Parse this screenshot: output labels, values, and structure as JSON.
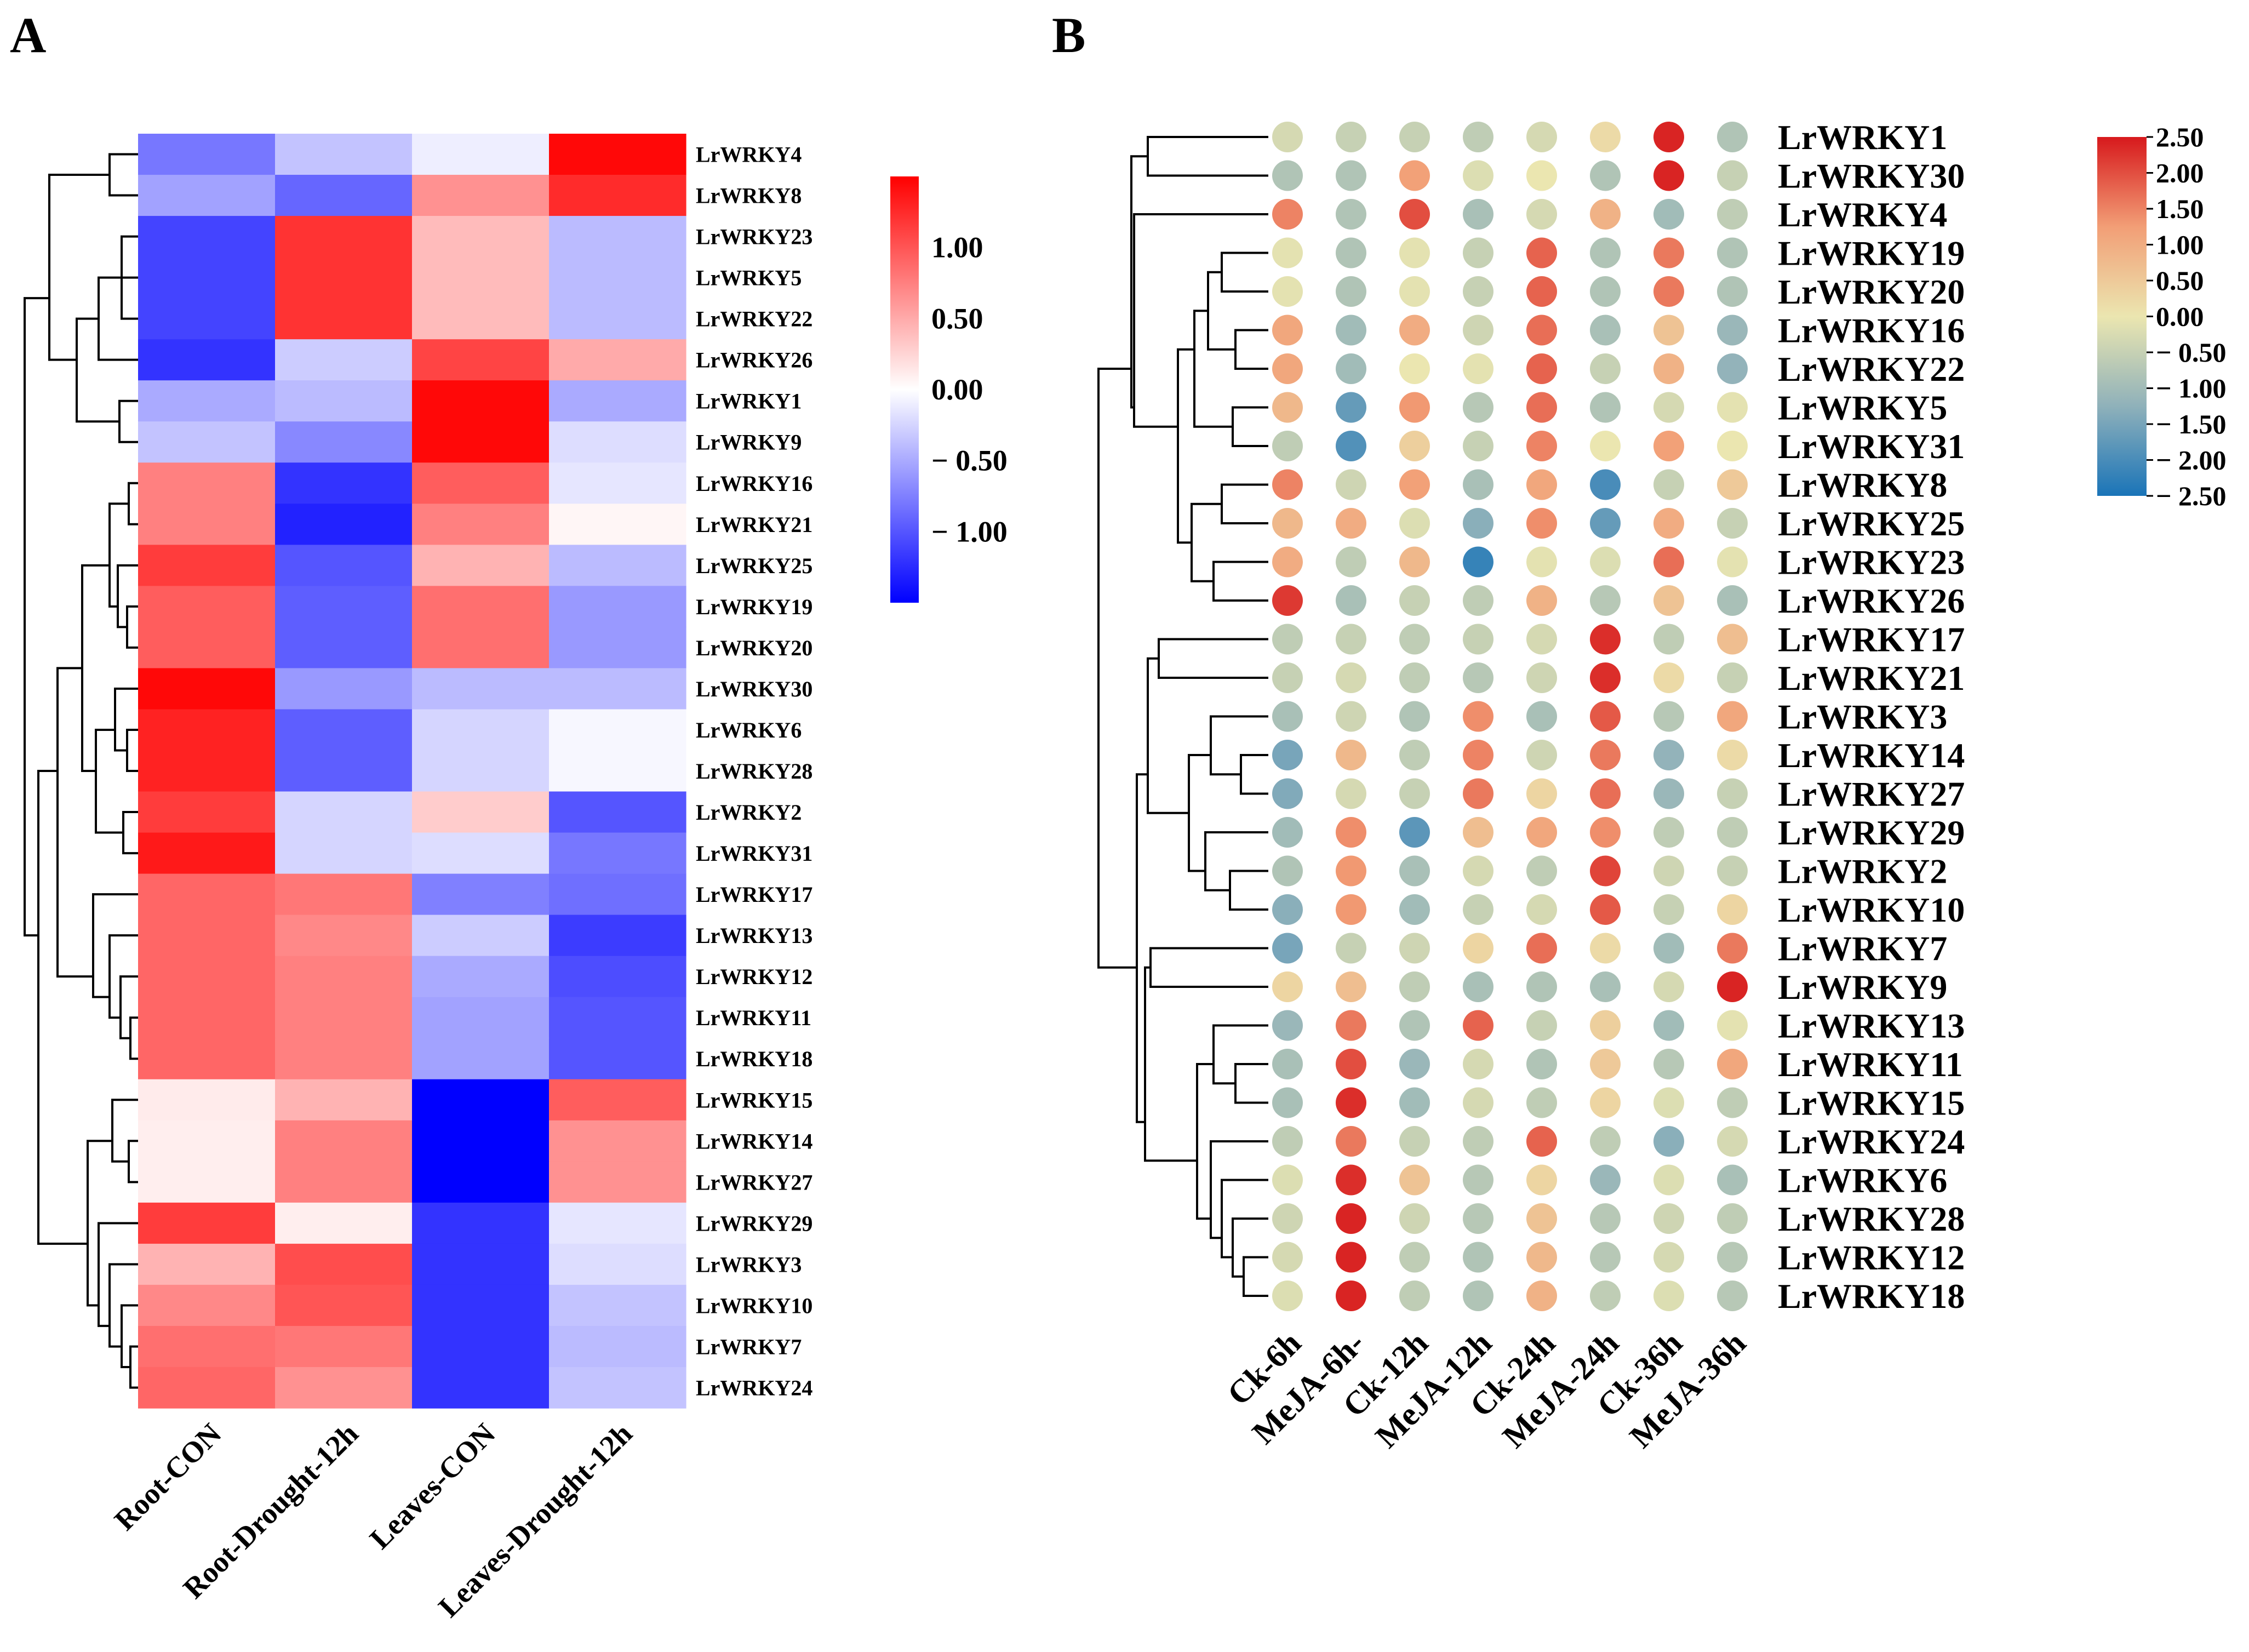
{
  "panels": {
    "a_label": "A",
    "b_label": "B"
  },
  "colors": {
    "heat_low": "#0000ff",
    "heat_mid": "#ffffff",
    "heat_high": "#ff0000",
    "tree": "#000000"
  },
  "chart_data": [
    {
      "type": "heatmap",
      "panel": "A",
      "columns": [
        "Root-CON",
        "Root-Drought-12h",
        "Leaves-CON",
        "Leaves-Drought-12h"
      ],
      "rows": [
        "LrWRKY4",
        "LrWRKY8",
        "LrWRKY23",
        "LrWRKY5",
        "LrWRKY22",
        "LrWRKY26",
        "LrWRKY1",
        "LrWRKY9",
        "LrWRKY16",
        "LrWRKY21",
        "LrWRKY25",
        "LrWRKY19",
        "LrWRKY20",
        "LrWRKY30",
        "LrWRKY6",
        "LrWRKY28",
        "LrWRKY2",
        "LrWRKY31",
        "LrWRKY17",
        "LrWRKY13",
        "LrWRKY12",
        "LrWRKY11",
        "LrWRKY18",
        "LrWRKY15",
        "LrWRKY14",
        "LrWRKY27",
        "LrWRKY29",
        "LrWRKY3",
        "LrWRKY10",
        "LrWRKY7",
        "LrWRKY24"
      ],
      "values": [
        [
          -0.8,
          -0.35,
          -0.1,
          1.45
        ],
        [
          -0.55,
          -0.9,
          0.65,
          1.25
        ],
        [
          -1.1,
          1.2,
          0.4,
          -0.4
        ],
        [
          -1.1,
          1.2,
          0.4,
          -0.4
        ],
        [
          -1.1,
          1.2,
          0.4,
          -0.4
        ],
        [
          -1.2,
          -0.3,
          1.1,
          0.5
        ],
        [
          -0.5,
          -0.4,
          1.45,
          -0.5
        ],
        [
          -0.35,
          -0.7,
          1.45,
          -0.2
        ],
        [
          0.75,
          -1.2,
          0.95,
          -0.15
        ],
        [
          0.75,
          -1.3,
          0.75,
          0.05
        ],
        [
          1.15,
          -1.0,
          0.45,
          -0.4
        ],
        [
          0.95,
          -0.95,
          0.85,
          -0.6
        ],
        [
          0.95,
          -0.95,
          0.85,
          -0.6
        ],
        [
          1.45,
          -0.6,
          -0.4,
          -0.4
        ],
        [
          1.3,
          -0.95,
          -0.25,
          -0.05
        ],
        [
          1.3,
          -0.95,
          -0.25,
          -0.05
        ],
        [
          1.15,
          -0.25,
          0.3,
          -1.0
        ],
        [
          1.35,
          -0.25,
          -0.2,
          -0.8
        ],
        [
          0.9,
          0.8,
          -0.75,
          -0.85
        ],
        [
          0.9,
          0.7,
          -0.3,
          -1.15
        ],
        [
          0.9,
          0.75,
          -0.5,
          -1.05
        ],
        [
          0.9,
          0.75,
          -0.55,
          -1.0
        ],
        [
          0.9,
          0.75,
          -0.55,
          -1.0
        ],
        [
          0.12,
          0.45,
          -1.5,
          0.95
        ],
        [
          0.1,
          0.75,
          -1.5,
          0.65
        ],
        [
          0.1,
          0.75,
          -1.5,
          0.65
        ],
        [
          1.15,
          0.1,
          -1.2,
          -0.15
        ],
        [
          0.45,
          1.05,
          -1.2,
          -0.2
        ],
        [
          0.7,
          1.0,
          -1.2,
          -0.35
        ],
        [
          0.85,
          0.8,
          -1.2,
          -0.4
        ],
        [
          0.9,
          0.65,
          -1.2,
          -0.35
        ]
      ],
      "colorbar": {
        "ticks": [
          1.0,
          0.5,
          0.0,
          -0.5,
          -1.0
        ],
        "tick_labels": [
          "1.00",
          "0.50",
          "0.00",
          "− 0.50",
          "− 1.00"
        ],
        "min": -1.5,
        "max": 1.5
      },
      "dendrogram": "hierarchical clustering of rows (left side)"
    },
    {
      "type": "heatmap",
      "panel": "B",
      "style": "dot-plot",
      "columns": [
        "Ck-6h",
        "MeJA-6h-",
        "Ck-12h",
        "MeJA-12h",
        "Ck-24h",
        "MeJA-24h",
        "Ck-36h",
        "MeJA-36h"
      ],
      "rows": [
        "LrWRKY1",
        "LrWRKY30",
        "LrWRKY4",
        "LrWRKY19",
        "LrWRKY20",
        "LrWRKY16",
        "LrWRKY22",
        "LrWRKY5",
        "LrWRKY31",
        "LrWRKY8",
        "LrWRKY25",
        "LrWRKY23",
        "LrWRKY26",
        "LrWRKY17",
        "LrWRKY21",
        "LrWRKY3",
        "LrWRKY14",
        "LrWRKY27",
        "LrWRKY29",
        "LrWRKY2",
        "LrWRKY10",
        "LrWRKY7",
        "LrWRKY9",
        "LrWRKY13",
        "LrWRKY11",
        "LrWRKY15",
        "LrWRKY24",
        "LrWRKY6",
        "LrWRKY28",
        "LrWRKY12",
        "LrWRKY18"
      ],
      "values": [
        [
          -0.3,
          -0.5,
          -0.5,
          -0.6,
          -0.3,
          0.2,
          2.4,
          -0.8
        ],
        [
          -0.8,
          -0.8,
          1.2,
          -0.2,
          0.0,
          -0.8,
          2.4,
          -0.5
        ],
        [
          1.5,
          -0.8,
          2.0,
          -0.9,
          -0.3,
          0.9,
          -1.0,
          -0.6
        ],
        [
          -0.1,
          -0.8,
          -0.1,
          -0.5,
          1.8,
          -0.8,
          1.6,
          -0.8
        ],
        [
          -0.1,
          -0.8,
          -0.1,
          -0.5,
          1.8,
          -0.8,
          1.6,
          -0.8
        ],
        [
          1.1,
          -1.0,
          1.0,
          -0.4,
          1.7,
          -0.9,
          0.6,
          -1.1
        ],
        [
          1.1,
          -1.0,
          0.0,
          -0.1,
          1.8,
          -0.5,
          0.9,
          -1.2
        ],
        [
          0.8,
          -1.7,
          1.3,
          -0.7,
          1.7,
          -0.8,
          -0.3,
          -0.1
        ],
        [
          -0.6,
          -1.9,
          0.4,
          -0.5,
          1.5,
          0.0,
          1.2,
          0.0
        ],
        [
          1.5,
          -0.4,
          1.2,
          -0.9,
          1.1,
          -2.0,
          -0.5,
          0.5
        ],
        [
          0.8,
          1.0,
          -0.2,
          -1.3,
          1.4,
          -1.7,
          1.0,
          -0.5
        ],
        [
          1.0,
          -0.6,
          0.8,
          -2.2,
          -0.1,
          -0.2,
          1.7,
          -0.1
        ],
        [
          2.2,
          -0.9,
          -0.5,
          -0.6,
          0.9,
          -0.7,
          0.6,
          -0.9
        ],
        [
          -0.6,
          -0.5,
          -0.6,
          -0.5,
          -0.3,
          2.3,
          -0.6,
          0.7
        ],
        [
          -0.5,
          -0.3,
          -0.6,
          -0.7,
          -0.4,
          2.3,
          0.2,
          -0.5
        ],
        [
          -0.9,
          -0.4,
          -0.8,
          1.4,
          -0.9,
          1.9,
          -0.7,
          1.1
        ],
        [
          -1.5,
          0.8,
          -0.6,
          1.5,
          -0.4,
          1.6,
          -1.2,
          0.2
        ],
        [
          -1.4,
          -0.3,
          -0.5,
          1.6,
          0.3,
          1.7,
          -1.1,
          -0.5
        ],
        [
          -1.0,
          1.4,
          -1.8,
          0.7,
          1.1,
          1.4,
          -0.6,
          -0.6
        ],
        [
          -0.8,
          1.3,
          -0.9,
          -0.3,
          -0.6,
          2.1,
          -0.4,
          -0.5
        ],
        [
          -1.3,
          1.3,
          -1.0,
          -0.5,
          -0.3,
          1.9,
          -0.5,
          0.3
        ],
        [
          -1.5,
          -0.5,
          -0.4,
          0.3,
          1.7,
          0.2,
          -1.0,
          1.6
        ],
        [
          0.3,
          0.7,
          -0.6,
          -0.9,
          -0.8,
          -0.9,
          -0.3,
          2.4
        ],
        [
          -1.1,
          1.6,
          -0.8,
          1.8,
          -0.5,
          0.4,
          -1.0,
          -0.1
        ],
        [
          -0.9,
          2.0,
          -1.1,
          -0.3,
          -0.8,
          0.5,
          -0.7,
          1.1
        ],
        [
          -0.9,
          2.3,
          -1.0,
          -0.3,
          -0.6,
          0.3,
          -0.2,
          -0.6
        ],
        [
          -0.6,
          1.6,
          -0.5,
          -0.6,
          1.8,
          -0.6,
          -1.3,
          -0.3
        ],
        [
          -0.2,
          2.3,
          0.6,
          -0.7,
          0.3,
          -1.1,
          -0.2,
          -0.9
        ],
        [
          -0.4,
          2.4,
          -0.4,
          -0.7,
          0.6,
          -0.7,
          -0.4,
          -0.6
        ],
        [
          -0.3,
          2.4,
          -0.6,
          -0.8,
          0.8,
          -0.7,
          -0.3,
          -0.7
        ],
        [
          -0.2,
          2.4,
          -0.6,
          -0.8,
          0.9,
          -0.6,
          -0.2,
          -0.7
        ]
      ],
      "colorbar": {
        "ticks": [
          2.5,
          2.0,
          1.5,
          1.0,
          0.5,
          0.0,
          -0.5,
          -1.0,
          -1.5,
          -2.0,
          -2.5
        ],
        "tick_labels": [
          "2.50",
          "2.00",
          "1.50",
          "1.00",
          "0.50",
          "0.00",
          "− 0.50",
          "− 1.00",
          "− 1.50",
          "− 2.00",
          "− 2.50"
        ],
        "min": -2.5,
        "max": 2.5
      },
      "dendrogram": "hierarchical clustering of rows (left side)"
    }
  ]
}
